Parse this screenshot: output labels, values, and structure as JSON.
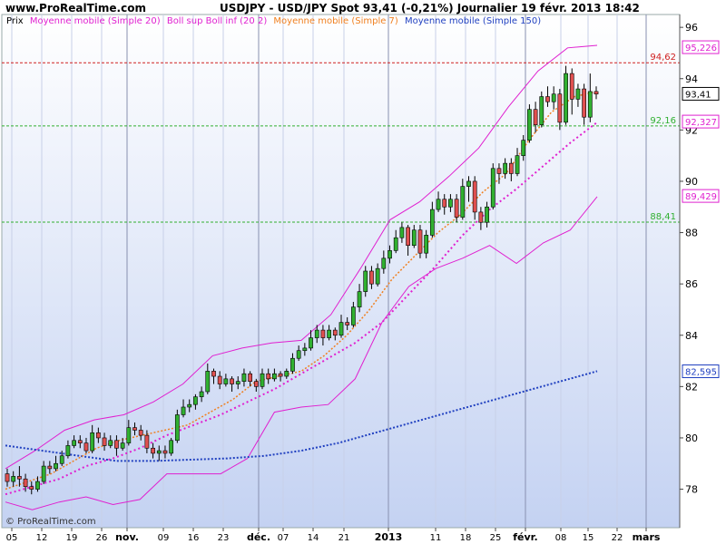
{
  "header": {
    "site": "www.ProRealTime.com",
    "title": "USDJPY - USD/JPY Spot    93,41 (-0,21%)    Journalier  19 févr. 2013 18:42"
  },
  "legend": [
    {
      "label": "Prix",
      "color": "#000000"
    },
    {
      "label": "Moyenne mobile (Simple 20)",
      "color": "#e020d0"
    },
    {
      "label": "Boll sup Boll inf (20 2)",
      "color": "#e020d0"
    },
    {
      "label": "Moyenne mobile (Simple 7)",
      "color": "#f08020"
    },
    {
      "label": "Moyenne mobile (Simple 150)",
      "color": "#2040c0"
    }
  ],
  "copyright": "© ProRealTime.com",
  "chart_data": {
    "type": "candlestick",
    "ylim": [
      76.5,
      96.5
    ],
    "y_ticks": [
      "96",
      "94",
      "92",
      "90",
      "88",
      "86",
      "84",
      "82",
      "80",
      "78"
    ],
    "x_ticks": [
      "05",
      "12",
      "19",
      "26",
      "nov.",
      "09",
      "16",
      "23",
      "déc.",
      "07",
      "14",
      "21",
      "2013",
      "11",
      "18",
      "25",
      "févr.",
      "08",
      "15",
      "22",
      "mars"
    ],
    "h_lines": [
      {
        "value": 94.62,
        "label": "94,62",
        "color": "#d02020"
      },
      {
        "value": 92.16,
        "label": "92,16",
        "color": "#30b030"
      },
      {
        "value": 88.41,
        "label": "88,41",
        "color": "#30b030"
      }
    ],
    "value_tags": [
      {
        "value": 95.226,
        "label": "95,226",
        "color": "#e020d0"
      },
      {
        "value": 93.41,
        "label": "93,41",
        "color": "#000000"
      },
      {
        "value": 92.327,
        "label": "92,327",
        "color": "#e020d0"
      },
      {
        "value": 89.429,
        "label": "89,429",
        "color": "#e020d0"
      },
      {
        "value": 82.595,
        "label": "82,595",
        "color": "#2040c0"
      }
    ],
    "candles": [
      [
        78.6,
        78.3,
        78.8,
        78.1
      ],
      [
        78.3,
        78.5,
        78.7,
        78.1
      ],
      [
        78.5,
        78.4,
        78.9,
        78.1
      ],
      [
        78.4,
        78.1,
        78.6,
        77.9
      ],
      [
        78.1,
        78.0,
        78.3,
        77.8
      ],
      [
        78.0,
        78.3,
        78.5,
        77.9
      ],
      [
        78.3,
        78.9,
        79.1,
        78.2
      ],
      [
        78.9,
        78.8,
        79.1,
        78.6
      ],
      [
        78.8,
        79.0,
        79.3,
        78.7
      ],
      [
        79.0,
        79.3,
        79.5,
        78.9
      ],
      [
        79.3,
        79.7,
        79.9,
        79.2
      ],
      [
        79.7,
        79.9,
        80.1,
        79.6
      ],
      [
        79.9,
        79.8,
        80.1,
        79.6
      ],
      [
        79.8,
        79.5,
        80.0,
        79.4
      ],
      [
        79.5,
        80.2,
        80.5,
        79.4
      ],
      [
        80.2,
        80.0,
        80.4,
        79.8
      ],
      [
        80.0,
        79.7,
        80.2,
        79.5
      ],
      [
        79.7,
        79.9,
        80.1,
        79.6
      ],
      [
        79.9,
        79.6,
        80.1,
        79.3
      ],
      [
        79.6,
        79.8,
        80.0,
        79.5
      ],
      [
        79.8,
        80.4,
        80.7,
        79.7
      ],
      [
        80.4,
        80.3,
        80.6,
        80.1
      ],
      [
        80.3,
        80.1,
        80.5,
        79.9
      ],
      [
        80.1,
        79.6,
        80.3,
        79.4
      ],
      [
        79.6,
        79.4,
        79.8,
        79.2
      ],
      [
        79.4,
        79.5,
        79.7,
        79.1
      ],
      [
        79.5,
        79.4,
        79.7,
        79.2
      ],
      [
        79.4,
        79.9,
        80.0,
        79.3
      ],
      [
        79.9,
        80.9,
        81.1,
        79.8
      ],
      [
        80.9,
        81.2,
        81.5,
        80.8
      ],
      [
        81.2,
        81.3,
        81.5,
        81.0
      ],
      [
        81.3,
        81.6,
        81.7,
        81.1
      ],
      [
        81.6,
        81.8,
        82.0,
        81.4
      ],
      [
        81.8,
        82.6,
        82.9,
        81.7
      ],
      [
        82.6,
        82.4,
        82.7,
        82.1
      ],
      [
        82.4,
        82.1,
        82.6,
        81.9
      ],
      [
        82.1,
        82.3,
        82.5,
        82.0
      ],
      [
        82.3,
        82.1,
        82.4,
        81.8
      ],
      [
        82.1,
        82.2,
        82.4,
        81.9
      ],
      [
        82.2,
        82.5,
        82.7,
        82.0
      ],
      [
        82.5,
        82.2,
        82.6,
        82.0
      ],
      [
        82.2,
        82.0,
        82.3,
        81.8
      ],
      [
        82.0,
        82.5,
        82.7,
        81.9
      ],
      [
        82.5,
        82.3,
        82.7,
        82.1
      ],
      [
        82.3,
        82.5,
        82.7,
        82.2
      ],
      [
        82.5,
        82.4,
        82.6,
        82.2
      ],
      [
        82.4,
        82.6,
        82.7,
        82.3
      ],
      [
        82.6,
        83.1,
        83.3,
        82.5
      ],
      [
        83.1,
        83.4,
        83.6,
        83.0
      ],
      [
        83.4,
        83.5,
        83.7,
        83.2
      ],
      [
        83.5,
        83.9,
        84.2,
        83.4
      ],
      [
        83.9,
        84.2,
        84.4,
        83.7
      ],
      [
        84.2,
        83.9,
        84.4,
        83.6
      ],
      [
        83.9,
        84.2,
        84.4,
        83.8
      ],
      [
        84.2,
        84.0,
        84.3,
        83.8
      ],
      [
        84.0,
        84.5,
        84.8,
        83.9
      ],
      [
        84.5,
        84.4,
        84.7,
        84.2
      ],
      [
        84.4,
        85.1,
        85.3,
        84.3
      ],
      [
        85.1,
        85.7,
        86.0,
        84.9
      ],
      [
        85.7,
        86.5,
        86.7,
        85.5
      ],
      [
        86.5,
        86.0,
        86.7,
        85.8
      ],
      [
        86.0,
        86.6,
        86.8,
        85.9
      ],
      [
        86.6,
        87.0,
        87.3,
        86.4
      ],
      [
        87.0,
        87.3,
        87.5,
        86.8
      ],
      [
        87.3,
        87.8,
        88.1,
        87.2
      ],
      [
        87.8,
        88.2,
        88.4,
        87.6
      ],
      [
        88.2,
        87.5,
        88.3,
        87.1
      ],
      [
        87.5,
        88.1,
        88.3,
        87.4
      ],
      [
        88.1,
        87.2,
        88.3,
        87.0
      ],
      [
        87.2,
        87.9,
        88.1,
        87.0
      ],
      [
        87.9,
        88.9,
        89.2,
        87.8
      ],
      [
        88.9,
        89.3,
        89.6,
        88.8
      ],
      [
        89.3,
        89.0,
        89.5,
        88.7
      ],
      [
        89.0,
        89.3,
        89.5,
        88.8
      ],
      [
        89.3,
        88.6,
        89.5,
        88.4
      ],
      [
        88.6,
        89.8,
        90.1,
        88.5
      ],
      [
        89.8,
        90.0,
        90.2,
        89.2
      ],
      [
        90.0,
        88.8,
        90.2,
        88.5
      ],
      [
        88.8,
        88.4,
        89.0,
        88.1
      ],
      [
        88.4,
        89.0,
        89.2,
        88.2
      ],
      [
        89.0,
        90.5,
        90.7,
        88.9
      ],
      [
        90.5,
        90.3,
        90.7,
        89.9
      ],
      [
        90.3,
        90.7,
        90.9,
        90.1
      ],
      [
        90.7,
        90.3,
        90.9,
        90.0
      ],
      [
        90.3,
        91.0,
        91.3,
        90.2
      ],
      [
        91.0,
        91.6,
        91.8,
        90.8
      ],
      [
        91.6,
        92.8,
        93.0,
        91.5
      ],
      [
        92.8,
        92.2,
        93.1,
        91.9
      ],
      [
        92.2,
        93.3,
        93.5,
        92.1
      ],
      [
        93.3,
        93.1,
        93.7,
        92.9
      ],
      [
        93.1,
        93.4,
        93.7,
        92.8
      ],
      [
        93.4,
        92.3,
        93.6,
        92.0
      ],
      [
        92.3,
        94.2,
        94.5,
        92.2
      ],
      [
        94.2,
        93.2,
        94.4,
        92.6
      ],
      [
        93.2,
        93.6,
        93.8,
        92.9
      ],
      [
        93.6,
        92.5,
        93.8,
        92.2
      ],
      [
        92.5,
        93.5,
        94.2,
        92.3
      ],
      [
        93.5,
        93.4,
        93.7,
        93.2
      ]
    ],
    "ma7": [
      78.0,
      78.3,
      78.6,
      79.1,
      79.6,
      79.9,
      80.1,
      80.3,
      80.5,
      81.0,
      81.5,
      82.2,
      82.4,
      82.6,
      83.2,
      84.0,
      85.0,
      86.2,
      87.1,
      88.0,
      88.7,
      89.6,
      90.3,
      91.6,
      92.7,
      93.3,
      93.5
    ],
    "ma20": [
      77.8,
      78.1,
      78.4,
      78.9,
      79.2,
      79.6,
      80.1,
      80.5,
      80.9,
      81.4,
      81.9,
      82.5,
      83.1,
      83.7,
      84.5,
      85.6,
      86.7,
      87.9,
      88.9,
      89.7,
      90.6,
      91.5,
      92.3
    ],
    "boll_sup": [
      78.8,
      79.5,
      80.3,
      80.7,
      80.9,
      81.4,
      82.1,
      83.2,
      83.5,
      83.7,
      83.8,
      84.8,
      86.6,
      88.5,
      89.2,
      90.2,
      91.3,
      92.9,
      94.3,
      95.2,
      95.3
    ],
    "boll_inf": [
      77.5,
      77.2,
      77.5,
      77.7,
      77.4,
      77.6,
      78.6,
      78.6,
      78.6,
      79.2,
      81.0,
      81.2,
      81.3,
      82.3,
      84.5,
      85.9,
      86.6,
      87.0,
      87.5,
      86.8,
      87.6,
      88.1,
      89.4
    ],
    "ma150": [
      79.7,
      79.5,
      79.3,
      79.1,
      79.1,
      79.15,
      79.2,
      79.3,
      79.5,
      79.8,
      80.2,
      80.6,
      81.0,
      81.4,
      81.8,
      82.2,
      82.6
    ]
  }
}
